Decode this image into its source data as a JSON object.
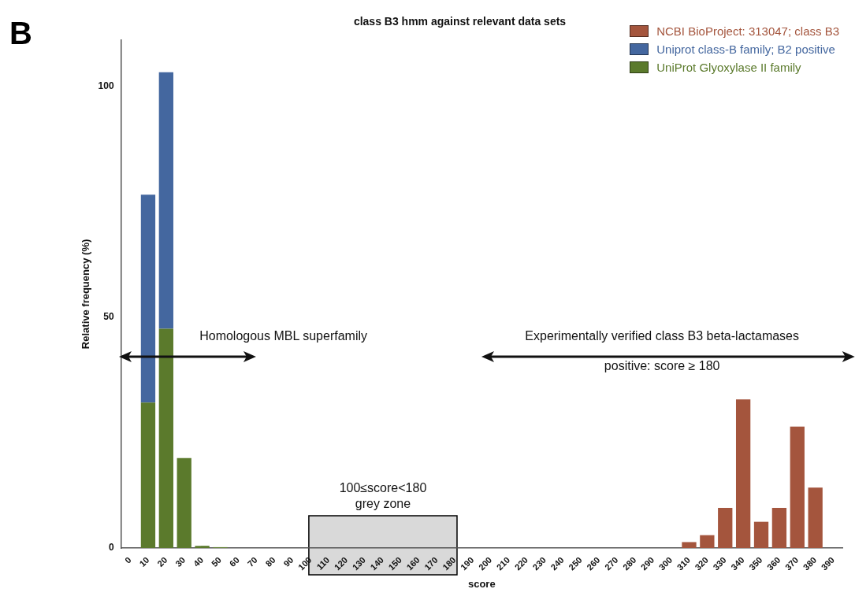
{
  "chart_data": {
    "type": "bar",
    "title": "class B3 hmm against relevant data sets",
    "xlabel": "score",
    "ylabel": "Relative frequency (%)",
    "categories": [
      "0",
      "10",
      "20",
      "30",
      "40",
      "50",
      "60",
      "70",
      "80",
      "90",
      "100",
      "110",
      "120",
      "130",
      "140",
      "150",
      "160",
      "170",
      "180",
      "190",
      "200",
      "210",
      "220",
      "230",
      "240",
      "250",
      "260",
      "270",
      "280",
      "290",
      "300",
      "310",
      "320",
      "330",
      "340",
      "350",
      "360",
      "370",
      "380",
      "390"
    ],
    "stacked": true,
    "series": [
      {
        "name": "UniProt Glyoxylase II family",
        "color": "#5b7a2c",
        "values": [
          null,
          31.5,
          47.5,
          19.5,
          0.5,
          0.2,
          null,
          null,
          null,
          null,
          null,
          null,
          null,
          null,
          null,
          null,
          null,
          null,
          null,
          null,
          null,
          null,
          null,
          null,
          null,
          null,
          null,
          null,
          null,
          null,
          null,
          null,
          null,
          null,
          null,
          null,
          null,
          null,
          null,
          null
        ]
      },
      {
        "name": "Uniprot class-B family; B2 positive",
        "color": "#44679f",
        "values": [
          null,
          45,
          55.5,
          null,
          null,
          null,
          null,
          null,
          null,
          null,
          null,
          null,
          null,
          null,
          null,
          null,
          null,
          null,
          null,
          null,
          null,
          null,
          null,
          null,
          null,
          null,
          null,
          null,
          null,
          null,
          null,
          null,
          null,
          null,
          null,
          null,
          null,
          null,
          null,
          null
        ]
      },
      {
        "name": "NCBI BioProject: 313047; class B3",
        "color": "#a4553d",
        "values": [
          null,
          null,
          null,
          null,
          null,
          null,
          null,
          null,
          null,
          null,
          null,
          null,
          null,
          null,
          null,
          null,
          null,
          null,
          null,
          null,
          null,
          null,
          null,
          null,
          null,
          null,
          null,
          null,
          null,
          null,
          null,
          1.3,
          2.8,
          8.7,
          32.2,
          5.7,
          8.7,
          26.3,
          13.1,
          null
        ]
      }
    ],
    "ylim": [
      0,
      110
    ],
    "yticks": [
      0,
      50,
      100
    ],
    "grid": false,
    "legend": "top right",
    "bands": [
      {
        "axis": "x",
        "from": "100",
        "to": "180",
        "label": "100≤score<180\ngrey zone",
        "color": "#d9d9d9"
      }
    ],
    "annotations": [
      "B",
      "Homologous MBL superfamily",
      "Experimentally verified class B3 beta-lactamases",
      "positive: score ≥ 180"
    ]
  }
}
